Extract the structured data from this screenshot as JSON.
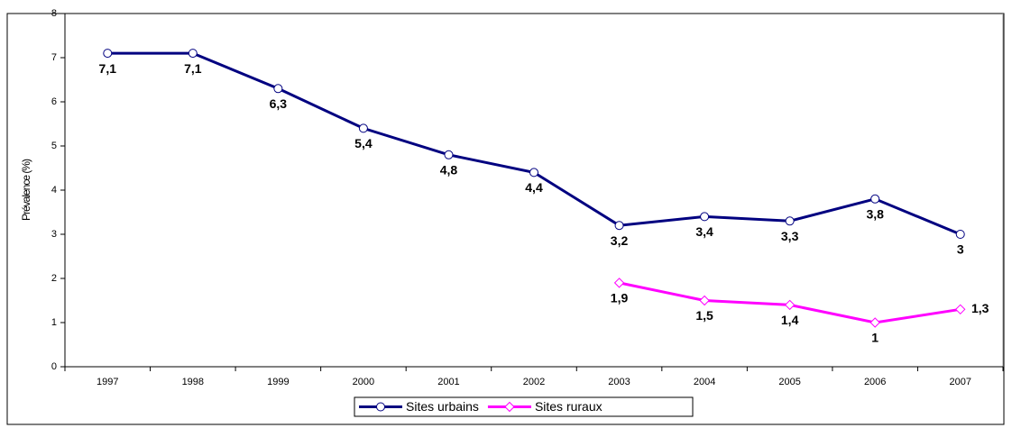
{
  "chart_data": {
    "type": "line",
    "y_label": "Prévalence (%)",
    "categories": [
      "1997",
      "1998",
      "1999",
      "2000",
      "2001",
      "2002",
      "2003",
      "2004",
      "2005",
      "2006",
      "2007"
    ],
    "series": [
      {
        "name": "Sites urbains",
        "color": "#000080",
        "marker": "circle",
        "values": [
          7.1,
          7.1,
          6.3,
          5.4,
          4.8,
          4.4,
          3.2,
          3.4,
          3.3,
          3.8,
          3
        ],
        "value_labels": [
          "7,1",
          "7,1",
          "6,3",
          "5,4",
          "4,8",
          "4,4",
          "3,2",
          "3,4",
          "3,3",
          "3,8",
          "3"
        ]
      },
      {
        "name": "Sites ruraux",
        "color": "#ff00ff",
        "marker": "diamond",
        "values": [
          null,
          null,
          null,
          null,
          null,
          null,
          1.9,
          1.5,
          1.4,
          1,
          1.3
        ],
        "value_labels": [
          null,
          null,
          null,
          null,
          null,
          null,
          "1,9",
          "1,5",
          "1,4",
          "1",
          "1,3"
        ]
      }
    ],
    "ylim": [
      0,
      8
    ],
    "yticks": [
      0,
      1,
      2,
      3,
      4,
      5,
      6,
      7,
      8
    ],
    "legend": "bottom"
  }
}
